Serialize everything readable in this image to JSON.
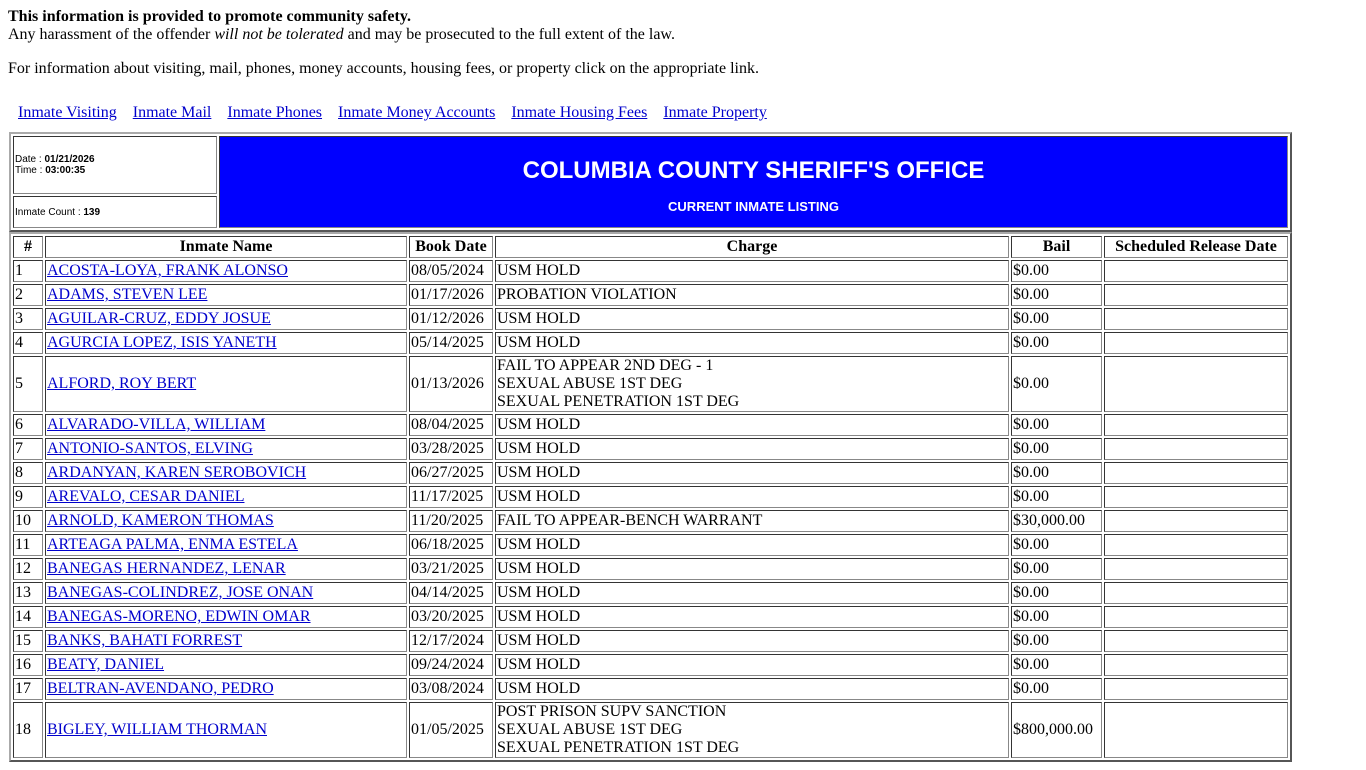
{
  "notice": {
    "bold_line": "This information is provided to promote community safety.",
    "line2_before": "Any harassment of the offender ",
    "line2_italic": "will not be tolerated",
    "line2_after": " and may be prosecuted to the full extent of the law.",
    "info": "For information about visiting, mail, phones, money accounts, housing fees, or property click on the appropriate link."
  },
  "links": [
    "Inmate Visiting",
    "Inmate Mail",
    "Inmate Phones",
    "Inmate Money Accounts",
    "Inmate Housing Fees",
    "Inmate Property"
  ],
  "header": {
    "date_label": "Date : ",
    "date": "01/21/2026",
    "time_label": "Time : ",
    "time": "03:00:35",
    "count_label": "Inmate Count : ",
    "count": "139",
    "title": "COLUMBIA COUNTY SHERIFF'S OFFICE",
    "subtitle": "CURRENT INMATE LISTING",
    "banner_color": "#0000ff"
  },
  "table": {
    "columns": [
      "#",
      "Inmate Name",
      "Book Date",
      "Charge",
      "Bail",
      "Scheduled Release Date"
    ],
    "rows": [
      {
        "n": "1",
        "name": "ACOSTA-LOYA, FRANK ALONSO",
        "date": "08/05/2024",
        "charges": [
          "USM HOLD"
        ],
        "bail": "$0.00",
        "release": ""
      },
      {
        "n": "2",
        "name": "ADAMS, STEVEN LEE",
        "date": "01/17/2026",
        "charges": [
          "PROBATION VIOLATION"
        ],
        "bail": "$0.00",
        "release": ""
      },
      {
        "n": "3",
        "name": "AGUILAR-CRUZ, EDDY JOSUE",
        "date": "01/12/2026",
        "charges": [
          "USM HOLD"
        ],
        "bail": "$0.00",
        "release": ""
      },
      {
        "n": "4",
        "name": "AGURCIA LOPEZ, ISIS YANETH",
        "date": "05/14/2025",
        "charges": [
          "USM HOLD"
        ],
        "bail": "$0.00",
        "release": ""
      },
      {
        "n": "5",
        "name": "ALFORD, ROY BERT",
        "date": "01/13/2026",
        "charges": [
          "FAIL TO APPEAR 2ND DEG - 1",
          "SEXUAL ABUSE 1ST DEG",
          "SEXUAL PENETRATION 1ST DEG"
        ],
        "bail": "$0.00",
        "release": ""
      },
      {
        "n": "6",
        "name": "ALVARADO-VILLA, WILLIAM",
        "date": "08/04/2025",
        "charges": [
          "USM HOLD"
        ],
        "bail": "$0.00",
        "release": ""
      },
      {
        "n": "7",
        "name": "ANTONIO-SANTOS, ELVING",
        "date": "03/28/2025",
        "charges": [
          "USM HOLD"
        ],
        "bail": "$0.00",
        "release": ""
      },
      {
        "n": "8",
        "name": "ARDANYAN, KAREN SEROBOVICH",
        "date": "06/27/2025",
        "charges": [
          "USM HOLD"
        ],
        "bail": "$0.00",
        "release": ""
      },
      {
        "n": "9",
        "name": "AREVALO, CESAR DANIEL",
        "date": "11/17/2025",
        "charges": [
          "USM HOLD"
        ],
        "bail": "$0.00",
        "release": ""
      },
      {
        "n": "10",
        "name": "ARNOLD, KAMERON THOMAS",
        "date": "11/20/2025",
        "charges": [
          "FAIL TO APPEAR-BENCH WARRANT"
        ],
        "bail": "$30,000.00",
        "release": ""
      },
      {
        "n": "11",
        "name": "ARTEAGA PALMA, ENMA ESTELA",
        "date": "06/18/2025",
        "charges": [
          "USM HOLD"
        ],
        "bail": "$0.00",
        "release": ""
      },
      {
        "n": "12",
        "name": "BANEGAS HERNANDEZ, LENAR",
        "date": "03/21/2025",
        "charges": [
          "USM HOLD"
        ],
        "bail": "$0.00",
        "release": ""
      },
      {
        "n": "13",
        "name": "BANEGAS-COLINDREZ, JOSE ONAN",
        "date": "04/14/2025",
        "charges": [
          "USM HOLD"
        ],
        "bail": "$0.00",
        "release": ""
      },
      {
        "n": "14",
        "name": "BANEGAS-MORENO, EDWIN OMAR",
        "date": "03/20/2025",
        "charges": [
          "USM HOLD"
        ],
        "bail": "$0.00",
        "release": ""
      },
      {
        "n": "15",
        "name": "BANKS, BAHATI FORREST",
        "date": "12/17/2024",
        "charges": [
          "USM HOLD"
        ],
        "bail": "$0.00",
        "release": ""
      },
      {
        "n": "16",
        "name": "BEATY, DANIEL",
        "date": "09/24/2024",
        "charges": [
          "USM HOLD"
        ],
        "bail": "$0.00",
        "release": ""
      },
      {
        "n": "17",
        "name": "BELTRAN-AVENDANO, PEDRO",
        "date": "03/08/2024",
        "charges": [
          "USM HOLD"
        ],
        "bail": "$0.00",
        "release": ""
      },
      {
        "n": "18",
        "name": "BIGLEY, WILLIAM THORMAN",
        "date": "01/05/2025",
        "charges": [
          "POST PRISON SUPV SANCTION",
          "SEXUAL ABUSE 1ST DEG",
          "SEXUAL PENETRATION 1ST DEG"
        ],
        "bail": "$800,000.00",
        "release": ""
      }
    ]
  }
}
